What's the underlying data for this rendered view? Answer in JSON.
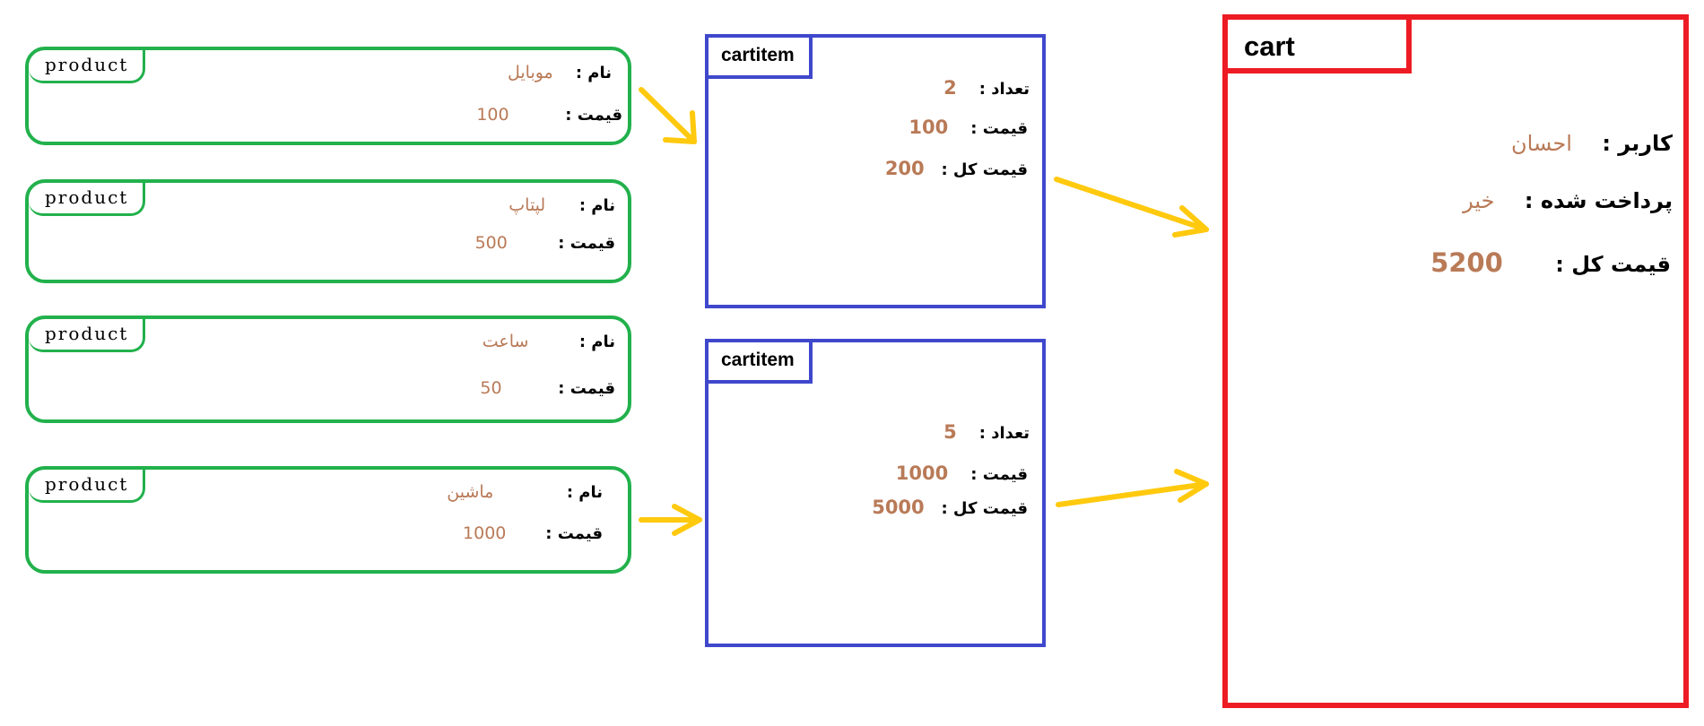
{
  "products": [
    {
      "tag": "product",
      "name_label": "نام :",
      "name": "موبایل",
      "price_label": "قیمت :",
      "price": "100"
    },
    {
      "tag": "product",
      "name_label": "نام :",
      "name": "لپتاپ",
      "price_label": "قیمت :",
      "price": "500"
    },
    {
      "tag": "product",
      "name_label": "نام :",
      "name": "ساعت",
      "price_label": "قیمت :",
      "price": "50"
    },
    {
      "tag": "product",
      "name_label": "نام :",
      "name": "ماشین",
      "price_label": "قیمت :",
      "price": "1000"
    }
  ],
  "cartitems": [
    {
      "tag": "cartitem",
      "qty_label": "تعداد :",
      "qty": "2",
      "price_label": "قیمت :",
      "price": "100",
      "total_label": "قیمت کل :",
      "total": "200"
    },
    {
      "tag": "cartitem",
      "qty_label": "تعداد :",
      "qty": "5",
      "price_label": "قیمت :",
      "price": "1000",
      "total_label": "قیمت کل :",
      "total": "5000"
    }
  ],
  "cart": {
    "tag": "cart",
    "user_label": "کاربر :",
    "user": "احسان",
    "paid_label": "پرداخت شده :",
    "paid": "خیر",
    "total_label": "قیمت کل :",
    "total": "5200"
  },
  "colors": {
    "product": "#22b14c",
    "cartitem": "#3f48cc",
    "cart": "#ed1c24",
    "arrow": "#ffc90e",
    "value": "#b97a57"
  }
}
